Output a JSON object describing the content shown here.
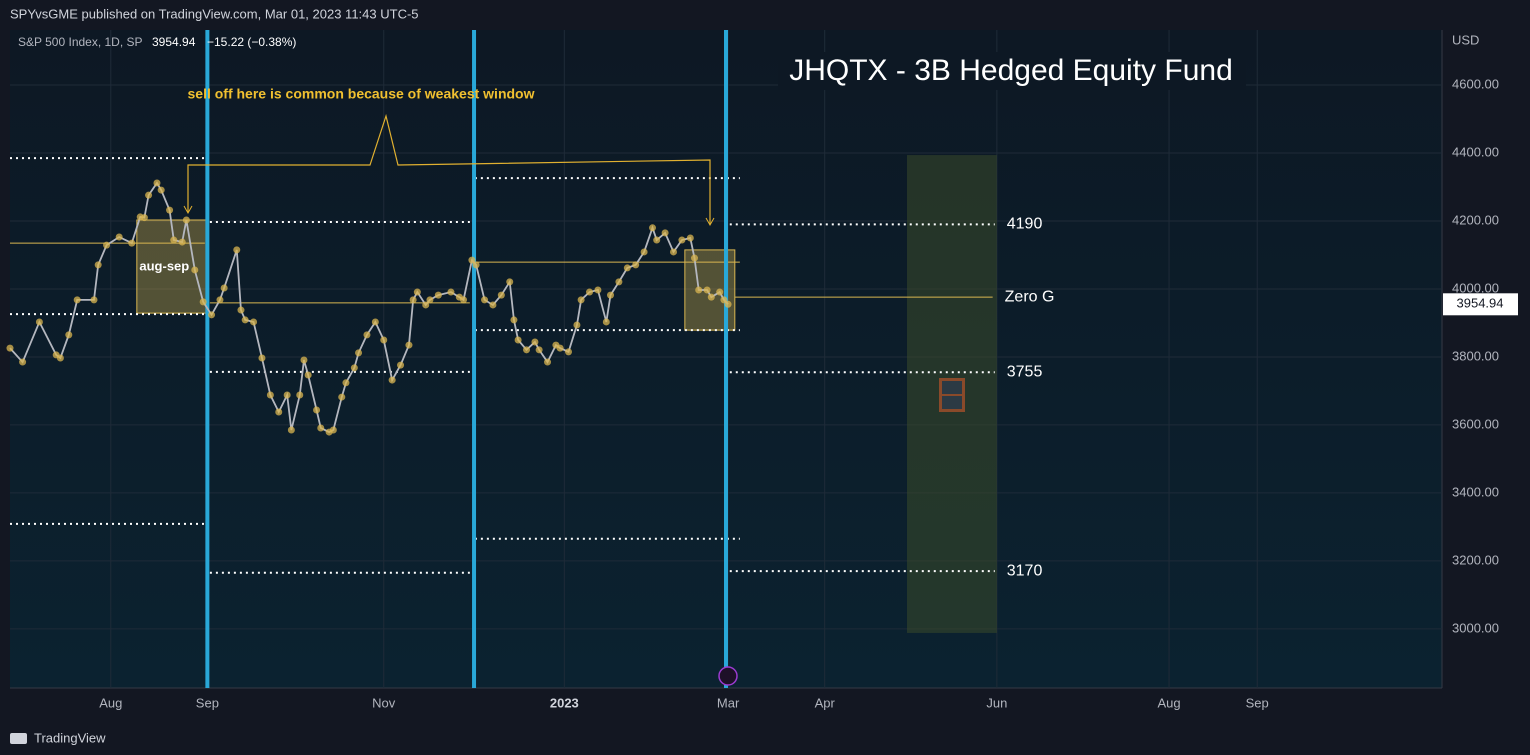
{
  "header": "SPYvsGME published on TradingView.com, Mar 01, 2023 11:43 UTC-5",
  "footer": "TradingView",
  "chart_data": {
    "type": "line",
    "title": "JHQTX - 3B Hedged Equity Fund",
    "annotation": "sell off here is common because of weakest window",
    "legend": {
      "symbol": "S&P 500 Index, 1D, SP",
      "price": "3954.94",
      "change": "−15.22 (−0.38%)"
    },
    "currency": "USD",
    "price_tag": 3954.94,
    "xlim": [
      0,
      341
    ],
    "xticks": [
      {
        "value": 24,
        "label": "Aug"
      },
      {
        "value": 47,
        "label": "Sep"
      },
      {
        "value": 89,
        "label": "Nov"
      },
      {
        "value": 132,
        "label": "2023"
      },
      {
        "value": 171,
        "label": "Mar"
      },
      {
        "value": 194,
        "label": "Apr"
      },
      {
        "value": 235,
        "label": "Jun"
      },
      {
        "value": 276,
        "label": "Aug"
      },
      {
        "value": 297,
        "label": "Sep"
      }
    ],
    "ylim": [
      2826,
      4762
    ],
    "yticks": [
      {
        "value": 3000,
        "label": "3000.00"
      },
      {
        "value": 3200,
        "label": "3200.00"
      },
      {
        "value": 3400,
        "label": "3400.00"
      },
      {
        "value": 3600,
        "label": "3600.00"
      },
      {
        "value": 3800,
        "label": "3800.00"
      },
      {
        "value": 4000,
        "label": "4000.00"
      },
      {
        "value": 4200,
        "label": "4200.00"
      },
      {
        "value": 4400,
        "label": "4400.00"
      },
      {
        "value": 4600,
        "label": "4600.00"
      }
    ],
    "grid": true,
    "color": "#b4b7bf",
    "marker_color": "#d9b650",
    "x": [
      0,
      3,
      7,
      11,
      12,
      14,
      16,
      20,
      21,
      23,
      26,
      29,
      31,
      32,
      33,
      35,
      36,
      38,
      39,
      41,
      42,
      44,
      46,
      48,
      50,
      51,
      54,
      55,
      56,
      58,
      60,
      62,
      64,
      66,
      67,
      69,
      70,
      71,
      73,
      74,
      76,
      77,
      79,
      80,
      82,
      83,
      85,
      87,
      89,
      91,
      93,
      95,
      96,
      97,
      99,
      100,
      102,
      105,
      107,
      108,
      110,
      111,
      113,
      115,
      117,
      119,
      120,
      121,
      123,
      125,
      126,
      128,
      130,
      131,
      133,
      135,
      136,
      138,
      140,
      142,
      143,
      145,
      147,
      149,
      151,
      153,
      154,
      156,
      158,
      160,
      162,
      163,
      164,
      166,
      167,
      169,
      170,
      171
    ],
    "values": [
      3826,
      3785,
      3903,
      3806,
      3797,
      3865,
      3968,
      3968,
      4071,
      4129,
      4153,
      4135,
      4212,
      4210,
      4276,
      4312,
      4291,
      4232,
      4144,
      4138,
      4203,
      4056,
      3962,
      3924,
      3968,
      4003,
      4115,
      3938,
      3909,
      3903,
      3797,
      3688,
      3638,
      3688,
      3585,
      3688,
      3791,
      3747,
      3644,
      3591,
      3579,
      3585,
      3682,
      3724,
      3768,
      3812,
      3865,
      3903,
      3850,
      3732,
      3776,
      3835,
      3968,
      3991,
      3953,
      3968,
      3982,
      3991,
      3976,
      3968,
      4085,
      4071,
      3968,
      3953,
      3982,
      4021,
      3909,
      3850,
      3821,
      3844,
      3821,
      3785,
      3835,
      3826,
      3815,
      3894,
      3968,
      3991,
      3997,
      3903,
      3982,
      4021,
      4062,
      4071,
      4109,
      4180,
      4144,
      4165,
      4109,
      4144,
      4150,
      4091,
      3997,
      3997,
      3976,
      3991,
      3968,
      3954.94
    ],
    "vlines": {
      "color": "#29a8d8",
      "x": [
        47,
        110.5,
        170.5
      ]
    },
    "zone": {
      "color": "#3b4a2a",
      "x": [
        213.6,
        235
      ],
      "y": [
        2988,
        4394
      ]
    },
    "boxes": [
      {
        "label": "aug-sep",
        "x": [
          30.2,
          47.1
        ],
        "y": [
          3929,
          4203
        ]
      },
      {
        "x": [
          160.7,
          172.6
        ],
        "y": [
          3879,
          4115
        ]
      }
    ],
    "levels": [
      {
        "value": 4385,
        "from": 0,
        "to": 46.4,
        "style": "dotted",
        "color": "#ffffff"
      },
      {
        "value": 4135,
        "from": 0,
        "to": 46.4,
        "style": "solid",
        "color": "#d9b650"
      },
      {
        "value": 3926,
        "from": 0,
        "to": 46.4,
        "style": "dotted",
        "color": "#ffffff"
      },
      {
        "value": 3309,
        "from": 0,
        "to": 46.4,
        "style": "dotted",
        "color": "#ffffff"
      },
      {
        "value": 4197,
        "from": 47.6,
        "to": 109.5,
        "style": "dotted",
        "color": "#ffffff"
      },
      {
        "value": 3959,
        "from": 47.6,
        "to": 109.5,
        "style": "solid",
        "color": "#d9b650"
      },
      {
        "value": 3756,
        "from": 47.6,
        "to": 109.5,
        "style": "dotted",
        "color": "#ffffff"
      },
      {
        "value": 3165,
        "from": 47.6,
        "to": 109.5,
        "style": "dotted",
        "color": "#ffffff"
      },
      {
        "value": 4326,
        "from": 110.7,
        "to": 173.8,
        "style": "dotted",
        "color": "#ffffff"
      },
      {
        "value": 4079,
        "from": 110.7,
        "to": 173.8,
        "style": "solid",
        "color": "#d9b650"
      },
      {
        "value": 3879,
        "from": 110.7,
        "to": 173.8,
        "style": "dotted",
        "color": "#ffffff"
      },
      {
        "value": 3265,
        "from": 110.7,
        "to": 173.8,
        "style": "dotted",
        "color": "#ffffff"
      },
      {
        "value": 4190,
        "label": "4190",
        "from": 171.4,
        "to": 234.5,
        "style": "dotted",
        "color": "#ffffff"
      },
      {
        "value": 3976,
        "label": "Zero G",
        "from": 172.6,
        "to": 234,
        "style": "solid",
        "color": "#d9b650"
      },
      {
        "value": 3755,
        "label": "3755",
        "from": 171.4,
        "to": 234.5,
        "style": "dotted",
        "color": "#ffffff"
      },
      {
        "value": 3170,
        "label": "3170",
        "from": 171.4,
        "to": 234.5,
        "style": "dotted",
        "color": "#ffffff"
      }
    ]
  }
}
